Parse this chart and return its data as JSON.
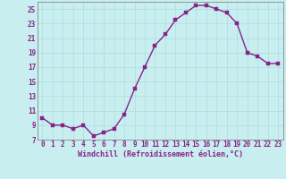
{
  "x": [
    0,
    1,
    2,
    3,
    4,
    5,
    6,
    7,
    8,
    9,
    10,
    11,
    12,
    13,
    14,
    15,
    16,
    17,
    18,
    19,
    20,
    21,
    22,
    23
  ],
  "y": [
    10,
    9,
    9,
    8.5,
    9,
    7.5,
    8,
    8.5,
    10.5,
    14,
    17,
    20,
    21.5,
    23.5,
    24.5,
    25.5,
    25.5,
    25,
    24.5,
    23,
    19,
    18.5,
    17.5,
    17.5
  ],
  "line_color": "#882288",
  "marker_color": "#882288",
  "bg_color": "#c8eef0",
  "grid_color": "#aadddd",
  "xlabel": "Windchill (Refroidissement éolien,°C)",
  "xlabel_color": "#882288",
  "tick_color": "#882288",
  "spine_color": "#888888",
  "ylim": [
    7,
    26
  ],
  "xlim": [
    -0.5,
    23.5
  ],
  "yticks": [
    7,
    9,
    11,
    13,
    15,
    17,
    19,
    21,
    23,
    25
  ],
  "xticks": [
    0,
    1,
    2,
    3,
    4,
    5,
    6,
    7,
    8,
    9,
    10,
    11,
    12,
    13,
    14,
    15,
    16,
    17,
    18,
    19,
    20,
    21,
    22,
    23
  ],
  "xtick_labels": [
    "0",
    "1",
    "2",
    "3",
    "4",
    "5",
    "6",
    "7",
    "8",
    "9",
    "10",
    "11",
    "12",
    "13",
    "14",
    "15",
    "16",
    "17",
    "18",
    "19",
    "20",
    "21",
    "22",
    "23"
  ],
  "ytick_labels": [
    "7",
    "9",
    "11",
    "13",
    "15",
    "17",
    "19",
    "21",
    "23",
    "25"
  ],
  "linewidth": 1.0,
  "markersize": 2.5,
  "xlabel_fontsize": 6.0,
  "tick_fontsize": 5.5
}
